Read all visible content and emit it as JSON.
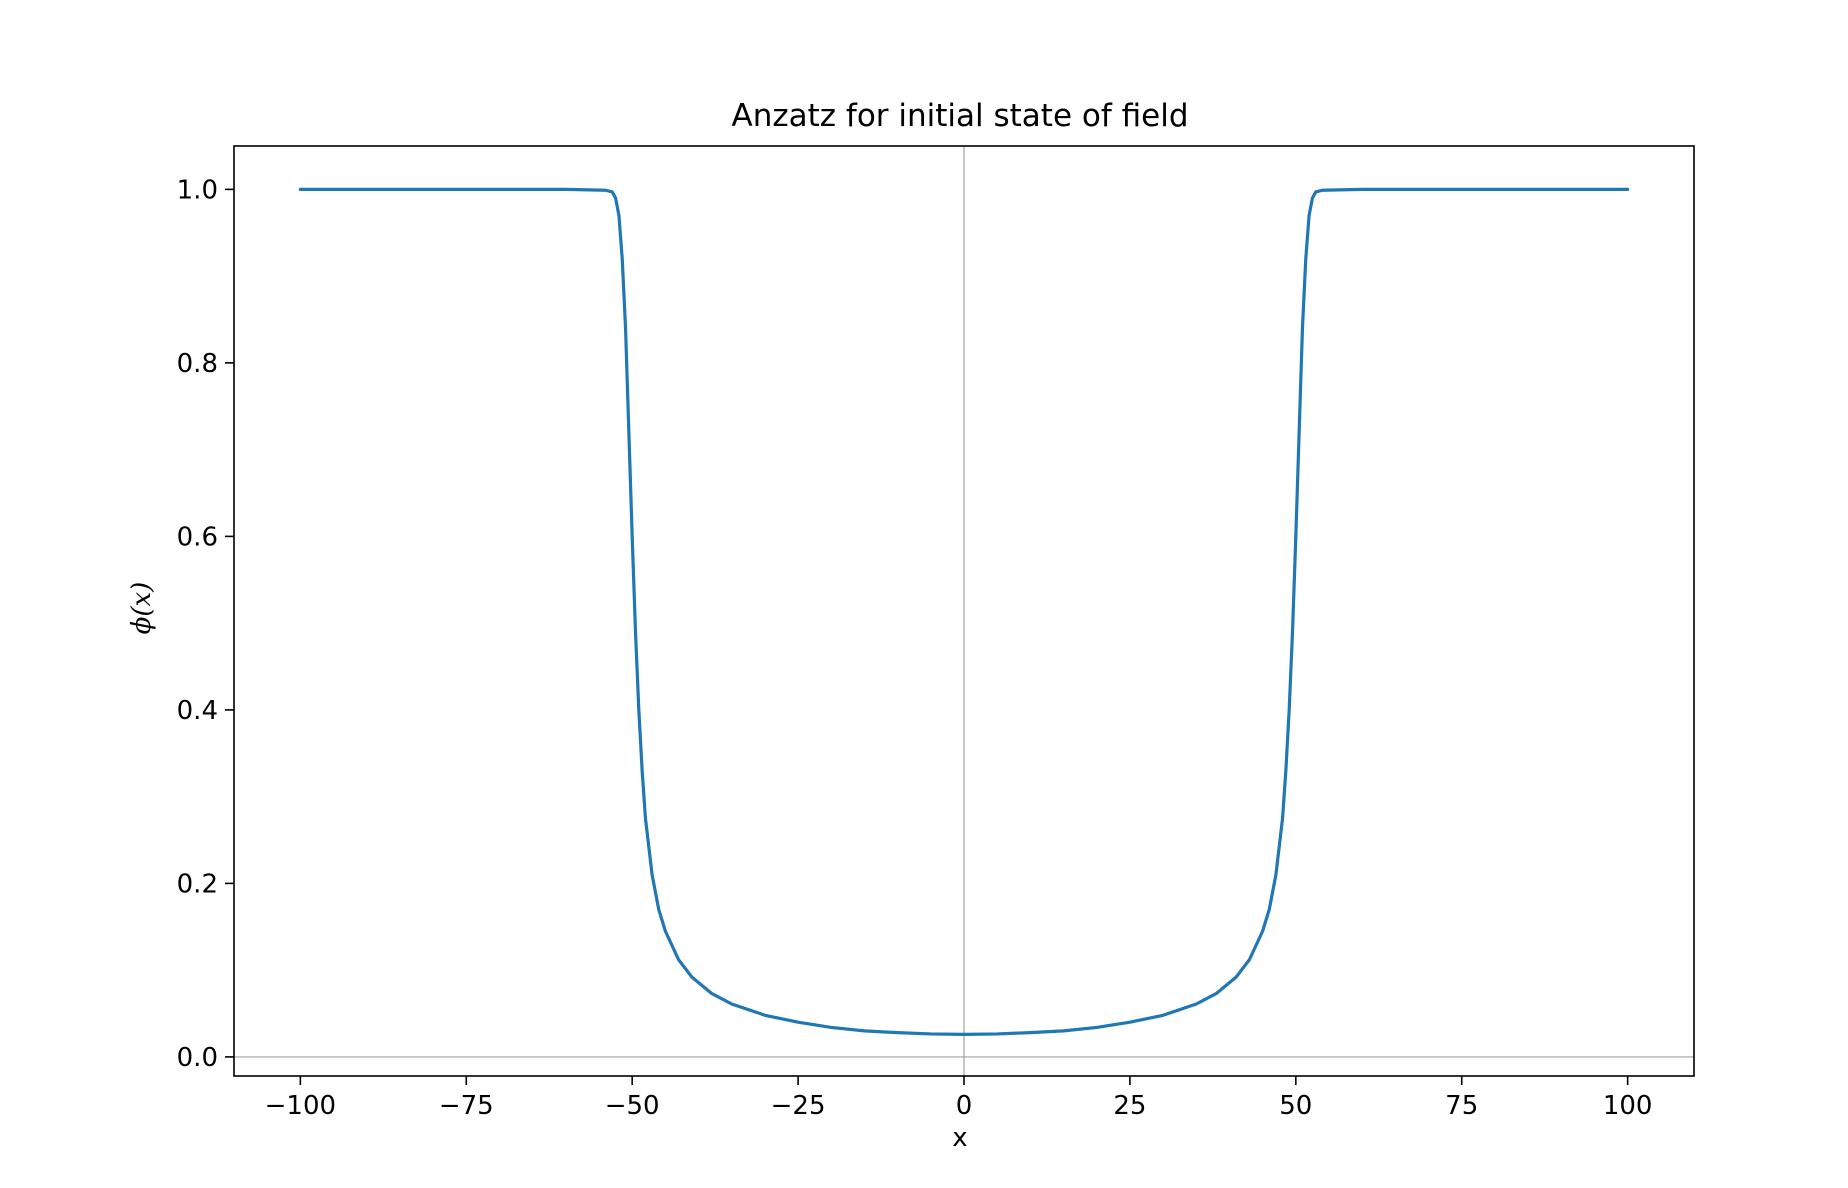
{
  "chart_data": {
    "type": "line",
    "title": "Anzatz for initial state of field",
    "xlabel": "x",
    "ylabel": "ϕ(x)",
    "xlim": [
      -110,
      110
    ],
    "ylim": [
      -0.022,
      1.05
    ],
    "x_ticks": [
      -100,
      -75,
      -50,
      -25,
      0,
      25,
      50,
      75,
      100
    ],
    "x_tick_labels": [
      "−100",
      "−75",
      "−50",
      "−25",
      "0",
      "25",
      "50",
      "75",
      "100"
    ],
    "y_ticks": [
      0.0,
      0.2,
      0.4,
      0.6,
      0.8,
      1.0
    ],
    "y_tick_labels": [
      "0.0",
      "0.2",
      "0.4",
      "0.6",
      "0.8",
      "1.0"
    ],
    "reference_lines": {
      "x": 0,
      "y": 0,
      "color": "#a0a0a0"
    },
    "grid": false,
    "legend": "none",
    "series": [
      {
        "color": "#1f77b4",
        "points": [
          [
            -100,
            1.0
          ],
          [
            -80,
            1.0
          ],
          [
            -60,
            1.0
          ],
          [
            -54,
            0.999
          ],
          [
            -53,
            0.997
          ],
          [
            -52.5,
            0.99
          ],
          [
            -52,
            0.97
          ],
          [
            -51.5,
            0.92
          ],
          [
            -51,
            0.84
          ],
          [
            -50.5,
            0.72
          ],
          [
            -50,
            0.6
          ],
          [
            -49.5,
            0.49
          ],
          [
            -49,
            0.4
          ],
          [
            -48.5,
            0.33
          ],
          [
            -48,
            0.275
          ],
          [
            -47,
            0.21
          ],
          [
            -46,
            0.17
          ],
          [
            -45,
            0.145
          ],
          [
            -43,
            0.112
          ],
          [
            -41,
            0.092
          ],
          [
            -38,
            0.073
          ],
          [
            -35,
            0.061
          ],
          [
            -30,
            0.048
          ],
          [
            -25,
            0.04
          ],
          [
            -20,
            0.034
          ],
          [
            -15,
            0.03
          ],
          [
            -10,
            0.028
          ],
          [
            -5,
            0.0265
          ],
          [
            0,
            0.026
          ],
          [
            5,
            0.0265
          ],
          [
            10,
            0.028
          ],
          [
            15,
            0.03
          ],
          [
            20,
            0.034
          ],
          [
            25,
            0.04
          ],
          [
            30,
            0.048
          ],
          [
            35,
            0.061
          ],
          [
            38,
            0.073
          ],
          [
            41,
            0.092
          ],
          [
            43,
            0.112
          ],
          [
            45,
            0.145
          ],
          [
            46,
            0.17
          ],
          [
            47,
            0.21
          ],
          [
            48,
            0.275
          ],
          [
            48.5,
            0.33
          ],
          [
            49,
            0.4
          ],
          [
            49.5,
            0.49
          ],
          [
            50,
            0.6
          ],
          [
            50.5,
            0.72
          ],
          [
            51,
            0.84
          ],
          [
            51.5,
            0.92
          ],
          [
            52,
            0.97
          ],
          [
            52.5,
            0.99
          ],
          [
            53,
            0.997
          ],
          [
            54,
            0.999
          ],
          [
            60,
            1.0
          ],
          [
            80,
            1.0
          ],
          [
            100,
            1.0
          ]
        ]
      }
    ]
  }
}
